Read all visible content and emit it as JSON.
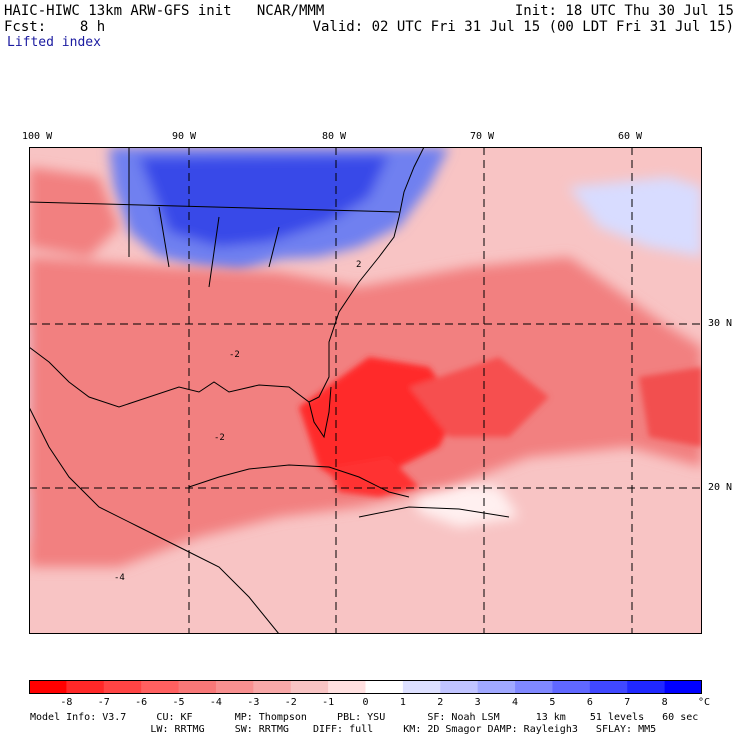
{
  "header": {
    "title": "HAIC-HIWC 13km ARW-GFS init   NCAR/MMM",
    "init": "Init: 18 UTC Thu 30 Jul 15",
    "fcst": "Fcst:    8 h",
    "valid": "Valid: 02 UTC Fri 31 Jul 15 (00 LDT Fri 31 Jul 15)",
    "field": "Lifted index"
  },
  "map": {
    "lon_labels": [
      "100 W",
      "90 W",
      "80 W",
      "70 W",
      "60 W"
    ],
    "lat_labels": [
      "30 N",
      "20 N"
    ],
    "contour_label": "-2",
    "contour_labels_alt": [
      "2",
      "-4"
    ],
    "colors": {
      "strong_negative": "#ff2020",
      "moderate_negative": "#f07878",
      "weak_negative": "#f8c0c0",
      "positive": "#7080f0",
      "strong_positive": "#2030e8"
    }
  },
  "colorbar": {
    "ticks": [
      "-8",
      "-7",
      "-6",
      "-5",
      "-4",
      "-3",
      "-2",
      "-1",
      "0",
      "1",
      "2",
      "3",
      "4",
      "5",
      "6",
      "7",
      "8"
    ],
    "unit": "°C",
    "colors": [
      "#ff0000",
      "#ff2828",
      "#ff4444",
      "#ff6060",
      "#f87878",
      "#f89090",
      "#f8a8a8",
      "#f8c4c4",
      "#ffe0e0",
      "#ffffff",
      "#dde0ff",
      "#c0c4ff",
      "#a0a8ff",
      "#8088ff",
      "#6068ff",
      "#4048ff",
      "#2028ff",
      "#0000ff"
    ]
  },
  "footer": {
    "line1": "Model Info: V3.7     CU: KF       MP: Thompson     PBL: YSU       SF: Noah LSM      13 km    51 levels   60 sec",
    "line2": "                    LW: RRTMG     SW: RRTMG    DIFF: full     KM: 2D Smagor DAMP: Rayleigh3   SFLAY: MM5"
  }
}
